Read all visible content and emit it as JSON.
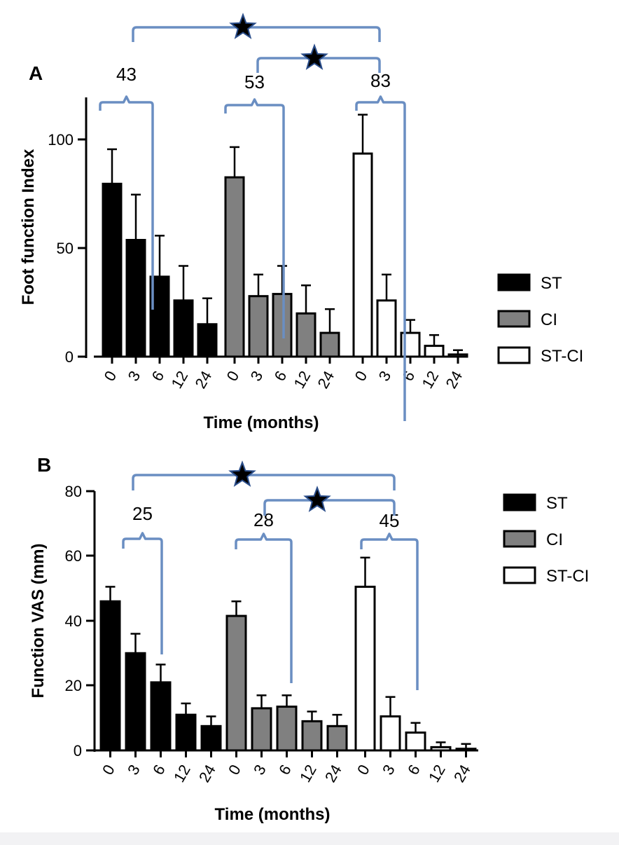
{
  "chart_data": [
    {
      "panel": "A",
      "type": "bar",
      "ylabel": "Foot function Index",
      "xlabel": "Time (months)",
      "ylim": [
        0,
        120
      ],
      "yticks": [
        0,
        50,
        100
      ],
      "categories": [
        "0",
        "3",
        "6",
        "12",
        "24"
      ],
      "series": [
        {
          "name": "ST",
          "fill": "#000000",
          "values": [
            80,
            54,
            37,
            26,
            15
          ],
          "errors": [
            16,
            21,
            19,
            16,
            12
          ]
        },
        {
          "name": "CI",
          "fill": "#808080",
          "values": [
            83,
            28,
            29,
            20,
            11
          ],
          "errors": [
            14,
            10,
            13,
            13,
            11
          ]
        },
        {
          "name": "ST-CI",
          "fill": "#ffffff",
          "values": [
            94,
            26,
            11,
            5,
            1
          ],
          "errors": [
            18,
            12,
            6,
            5,
            2
          ]
        }
      ],
      "brackets": [
        "43",
        "53",
        "83"
      ],
      "significance": [
        "★",
        "★"
      ],
      "legend": {
        "entries": [
          "ST",
          "CI",
          "ST-CI"
        ],
        "position": "right"
      }
    },
    {
      "panel": "B",
      "type": "bar",
      "ylabel": "Function VAS (mm)",
      "xlabel": "Time (months)",
      "ylim": [
        0,
        80
      ],
      "yticks": [
        0,
        20,
        40,
        60,
        80
      ],
      "categories": [
        "0",
        "3",
        "6",
        "12",
        "24"
      ],
      "series": [
        {
          "name": "ST",
          "fill": "#000000",
          "values": [
            46,
            30,
            21,
            11,
            7.5
          ],
          "errors": [
            4.5,
            6,
            5.5,
            3.5,
            3
          ]
        },
        {
          "name": "CI",
          "fill": "#808080",
          "values": [
            41.5,
            13,
            13.5,
            9,
            7.5
          ],
          "errors": [
            4.5,
            4,
            3.5,
            3,
            3.5
          ]
        },
        {
          "name": "ST-CI",
          "fill": "#ffffff",
          "values": [
            50.5,
            10.5,
            5.5,
            1,
            0.5
          ],
          "errors": [
            9,
            6,
            3,
            1.5,
            1.5
          ]
        }
      ],
      "brackets": [
        "25",
        "28",
        "45"
      ],
      "significance": [
        "★",
        "★"
      ],
      "legend": {
        "entries": [
          "ST",
          "CI",
          "ST-CI"
        ],
        "position": "right"
      }
    }
  ],
  "colors": {
    "bracket": "#6a8ec2",
    "star": "#000000",
    "star_outline": "#2a4d8a",
    "cat_a": "#111111",
    "cat_b": "#808080",
    "cat_c": "#ffffff"
  }
}
